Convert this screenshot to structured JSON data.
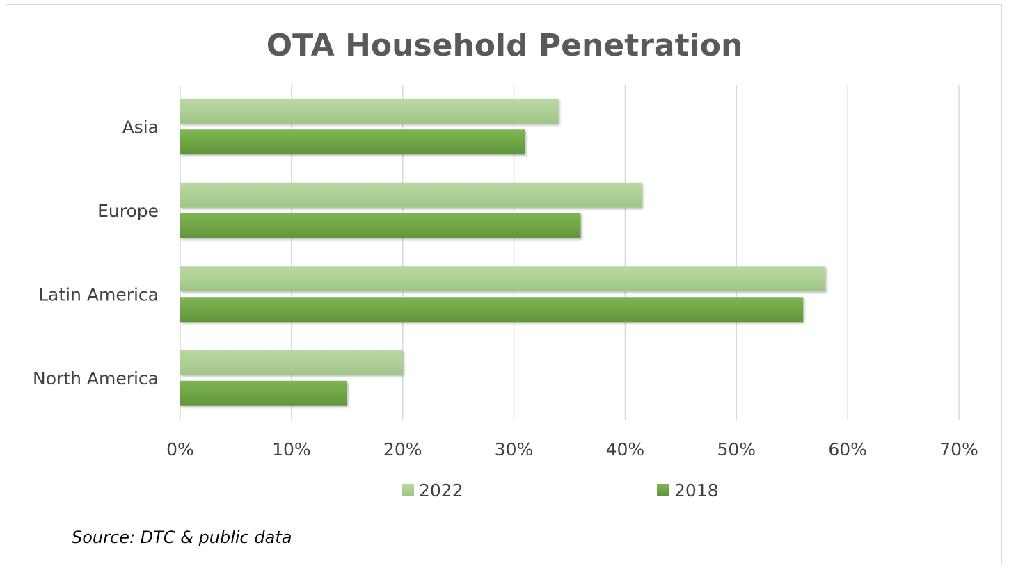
{
  "chart_data": {
    "type": "bar",
    "orientation": "horizontal",
    "title": "OTA Household Penetration",
    "categories": [
      "Asia",
      "Europe",
      "Latin America",
      "North America"
    ],
    "series": [
      {
        "name": "2022",
        "values": [
          34,
          41.5,
          58,
          20
        ],
        "color": "#a9d08e"
      },
      {
        "name": "2018",
        "values": [
          31,
          36,
          56,
          15
        ],
        "color": "#70ad47"
      }
    ],
    "x_ticks": [
      "0%",
      "10%",
      "20%",
      "30%",
      "40%",
      "50%",
      "60%",
      "70%"
    ],
    "xlim": [
      0,
      70
    ],
    "value_unit": "%",
    "grid": true,
    "legend_position": "bottom"
  },
  "source_note": "Source: DTC & public data"
}
